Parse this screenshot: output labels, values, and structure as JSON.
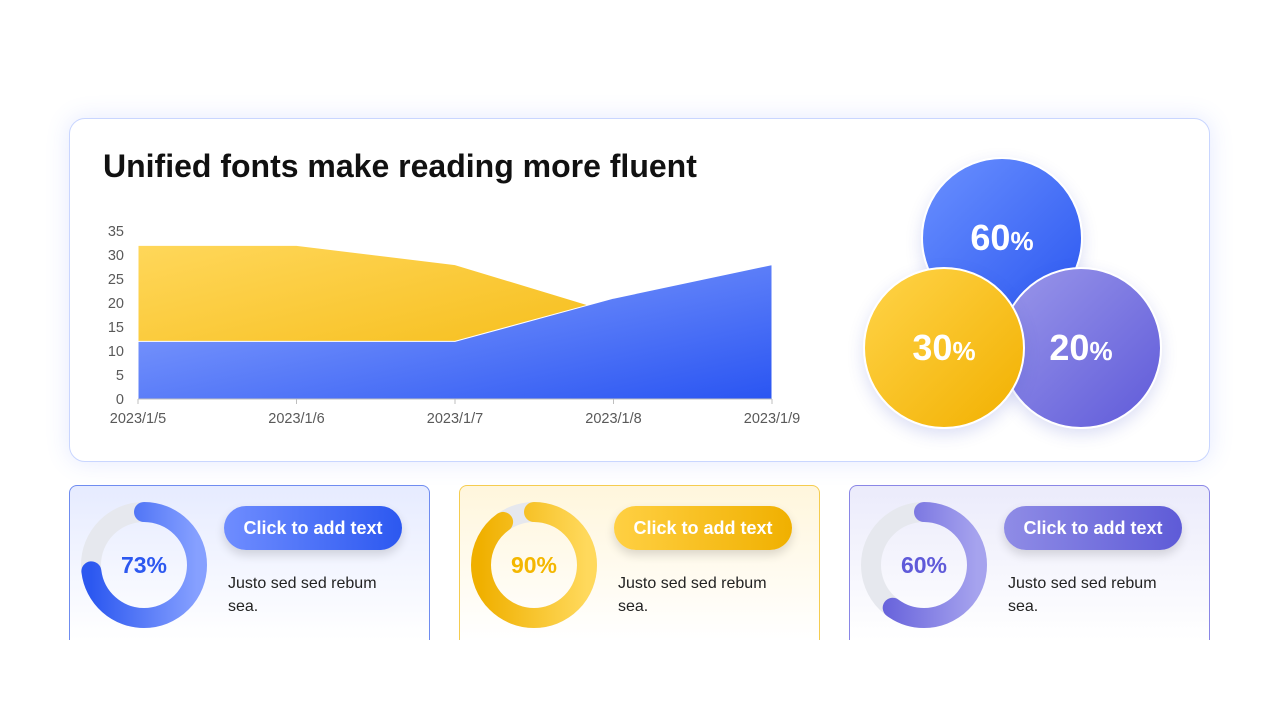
{
  "title": "Unified fonts make reading more fluent",
  "colors": {
    "blue": "#2c58f0",
    "yellow": "#f4b700",
    "purple": "#5f5ad9",
    "track": "#e6e8ee"
  },
  "chart_data": {
    "type": "area",
    "title": "Unified fonts make reading more fluent",
    "categories": [
      "2023/1/5",
      "2023/1/6",
      "2023/1/7",
      "2023/1/8",
      "2023/1/9"
    ],
    "yticks": [
      "0",
      "5",
      "10",
      "15",
      "20",
      "25",
      "30",
      "35"
    ],
    "ylim": [
      0,
      35
    ],
    "grid": false,
    "series": [
      {
        "values": [
          32,
          32,
          28,
          18,
          12
        ],
        "color": "#f4b700"
      },
      {
        "values": [
          12,
          12,
          12,
          21,
          28
        ],
        "color": "#2c58f0"
      }
    ]
  },
  "bubbles": [
    {
      "value": "60",
      "unit": "%"
    },
    {
      "value": "30",
      "unit": "%"
    },
    {
      "value": "20",
      "unit": "%"
    }
  ],
  "cards": [
    {
      "percent": "73%",
      "fraction": 0.73,
      "button": "Click to add text",
      "text": "Justo sed sed rebum sea."
    },
    {
      "percent": "90%",
      "fraction": 0.9,
      "button": "Click to add text",
      "text": "Justo sed sed rebum sea."
    },
    {
      "percent": "60%",
      "fraction": 0.6,
      "button": "Click to add text",
      "text": "Justo sed sed rebum sea."
    }
  ]
}
